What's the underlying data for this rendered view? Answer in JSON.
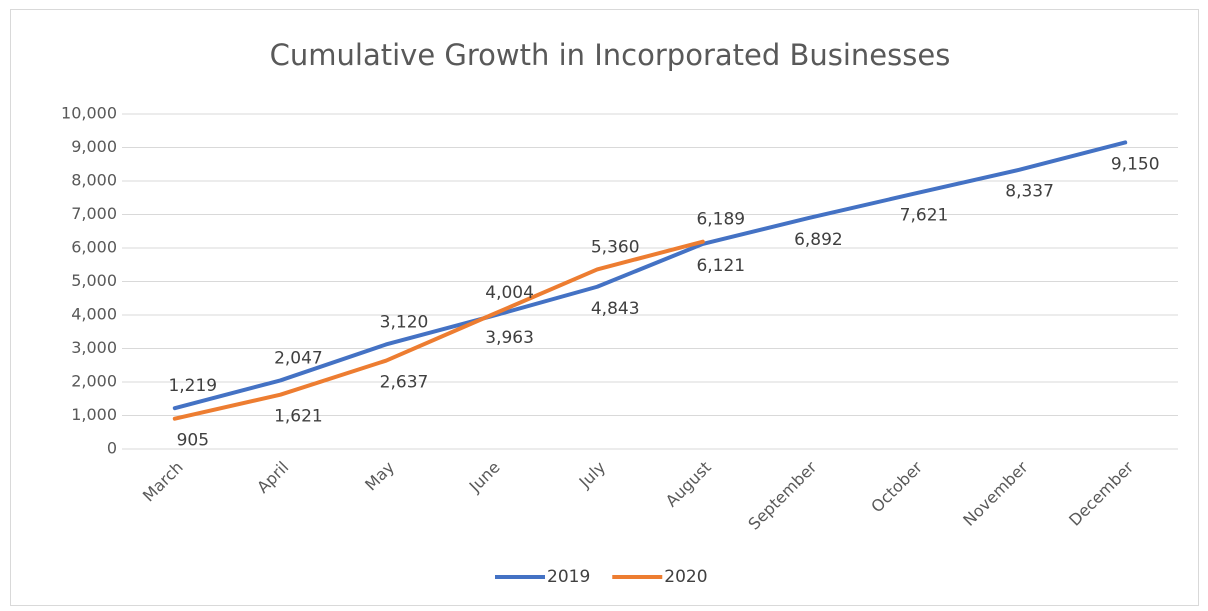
{
  "chart_data": {
    "type": "line",
    "title": "Cumulative Growth in Incorporated Businesses",
    "categories": [
      "March",
      "April",
      "May",
      "June",
      "July",
      "August",
      "September",
      "October",
      "November",
      "December"
    ],
    "series": [
      {
        "name": "2019",
        "color": "#4472c4",
        "values": [
          1219,
          2047,
          3120,
          3963,
          4843,
          6121,
          6892,
          7621,
          8337,
          9150
        ],
        "value_labels": [
          "1,219",
          "2,047",
          "3,120",
          "3,963",
          "4,843",
          "6,121",
          "6,892",
          "7,621",
          "8,337",
          "9,150"
        ]
      },
      {
        "name": "2020",
        "color": "#ed7d31",
        "values": [
          905,
          1621,
          2637,
          4004,
          5360,
          6189,
          null,
          null,
          null,
          null
        ],
        "value_labels": [
          "905",
          "1,621",
          "2,637",
          "4,004",
          "5,360",
          "6,189",
          null,
          null,
          null,
          null
        ]
      }
    ],
    "ylim": [
      0,
      10000
    ],
    "yticks": [
      0,
      {
        "value": 1000,
        "label": "1,000"
      },
      {
        "value": 2000,
        "label": "2,000"
      },
      {
        "value": 3000,
        "label": "3,000"
      },
      {
        "value": 4000,
        "label": "4,000"
      },
      {
        "value": 5000,
        "label": "5,000"
      },
      {
        "value": 6000,
        "label": "6,000"
      },
      {
        "value": 7000,
        "label": "7,000"
      },
      {
        "value": 8000,
        "label": "8,000"
      },
      {
        "value": 9000,
        "label": "9,000"
      },
      {
        "value": 10000,
        "label": "10,000"
      }
    ],
    "grid": true,
    "legend": "bottom"
  }
}
